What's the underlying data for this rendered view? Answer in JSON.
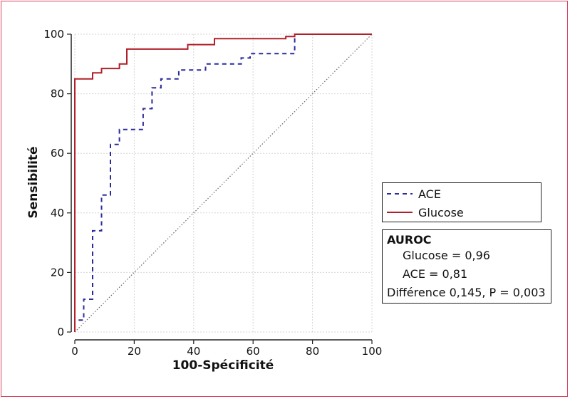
{
  "chart_data": {
    "type": "line",
    "xlabel": "100-Spécificité",
    "ylabel": "Sensibilité",
    "xlim": [
      0,
      100
    ],
    "ylim": [
      0,
      100
    ],
    "x_ticks": [
      "0",
      "20",
      "40",
      "60",
      "80",
      "100"
    ],
    "y_ticks": [
      "0",
      "20",
      "40",
      "60",
      "80",
      "100"
    ],
    "grid": true,
    "legend_position": "right",
    "reference_line": {
      "x": [
        0,
        100
      ],
      "y": [
        0,
        100
      ],
      "style": "dotted"
    },
    "series": [
      {
        "name": "ACE",
        "color": "#2b2b9a",
        "style": "dashed",
        "x": [
          0,
          0,
          3,
          3,
          6,
          6,
          9,
          9,
          12,
          12,
          15,
          15,
          23,
          23,
          26,
          26,
          29,
          29,
          35,
          35,
          44,
          44,
          56,
          56,
          59,
          59,
          74,
          74,
          100
        ],
        "y": [
          0,
          4,
          4,
          11,
          11,
          34,
          34,
          46,
          46,
          63,
          63,
          68,
          68,
          75,
          75,
          82,
          82,
          85,
          85,
          88,
          88,
          90,
          90,
          92,
          92,
          93.5,
          93.5,
          100,
          100
        ]
      },
      {
        "name": "Glucose",
        "color": "#b0202a",
        "style": "solid",
        "x": [
          0,
          0,
          6,
          6,
          9,
          9,
          15,
          15,
          17.5,
          17.5,
          38,
          38,
          47,
          47,
          71,
          71,
          74,
          74,
          100
        ],
        "y": [
          0,
          85,
          85,
          87,
          87,
          88.5,
          88.5,
          90,
          90,
          95,
          95,
          96.5,
          96.5,
          98.5,
          98.5,
          99.2,
          99.2,
          100,
          100
        ]
      }
    ]
  },
  "auroc": {
    "title": "AUROC",
    "glucose": "Glucose = 0,96",
    "ace": "ACE = 0,81",
    "difference": "Différence 0,145, P = 0,003"
  }
}
